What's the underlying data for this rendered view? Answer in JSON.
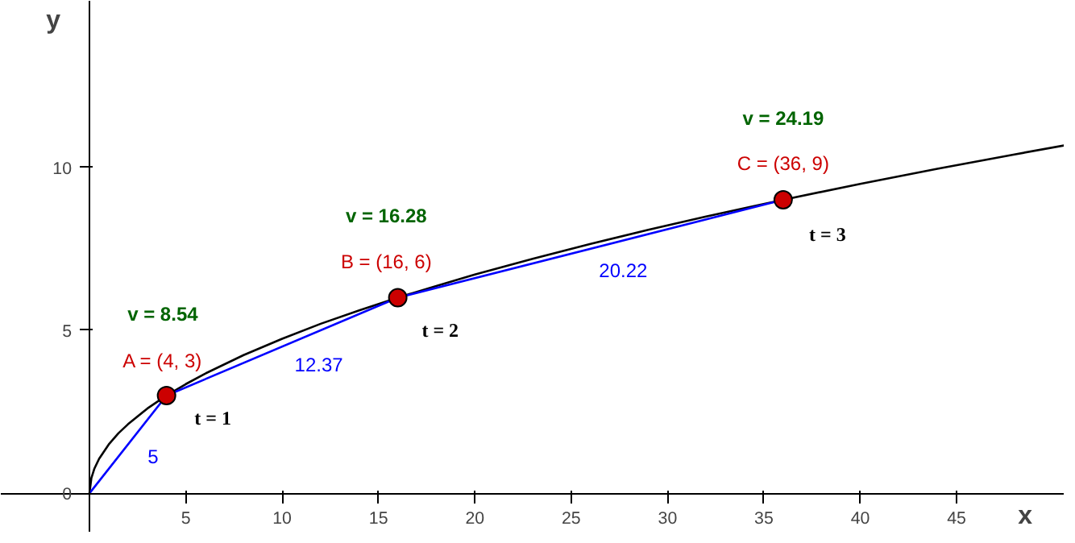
{
  "chart_data": {
    "type": "line",
    "xlabel": "x",
    "ylabel": "y",
    "xlim": [
      -4.6,
      50.6
    ],
    "ylim": [
      -1.2,
      15.1
    ],
    "xticks": [
      5,
      10,
      15,
      20,
      25,
      30,
      35,
      40,
      45
    ],
    "yticks": [
      0,
      5,
      10
    ],
    "series": [
      {
        "color": "#000000",
        "x": [
          0,
          0.1,
          0.25,
          0.5,
          1,
          1.5,
          2,
          3,
          4,
          5,
          6,
          8,
          10,
          12,
          14,
          16,
          18,
          20,
          23,
          26,
          29,
          32,
          36,
          40,
          44,
          48,
          50.6
        ],
        "values": [
          0,
          0.47,
          0.75,
          1.06,
          1.5,
          1.84,
          2.12,
          2.6,
          3,
          3.35,
          3.67,
          4.24,
          4.74,
          5.2,
          5.61,
          6,
          6.36,
          6.71,
          7.19,
          7.65,
          8.08,
          8.49,
          9,
          9.49,
          9.95,
          10.39,
          10.67
        ]
      },
      {
        "color": "#0000ff",
        "x": [
          0,
          4,
          16,
          36
        ],
        "values": [
          0,
          3,
          6,
          9
        ]
      },
      {
        "type": "scatter",
        "color": "#cc0000",
        "marker": "circle",
        "x": [
          4,
          16,
          36
        ],
        "values": [
          3,
          6,
          9
        ]
      }
    ],
    "annotations": [
      "v = 8.54",
      "A = (4, 3)",
      "5",
      "12.37",
      "t = 1",
      "v = 16.28",
      "B = (16, 6)",
      "t = 2",
      "20.22",
      "v = 24.19",
      "C = (36, 9)",
      "t = 3"
    ]
  }
}
